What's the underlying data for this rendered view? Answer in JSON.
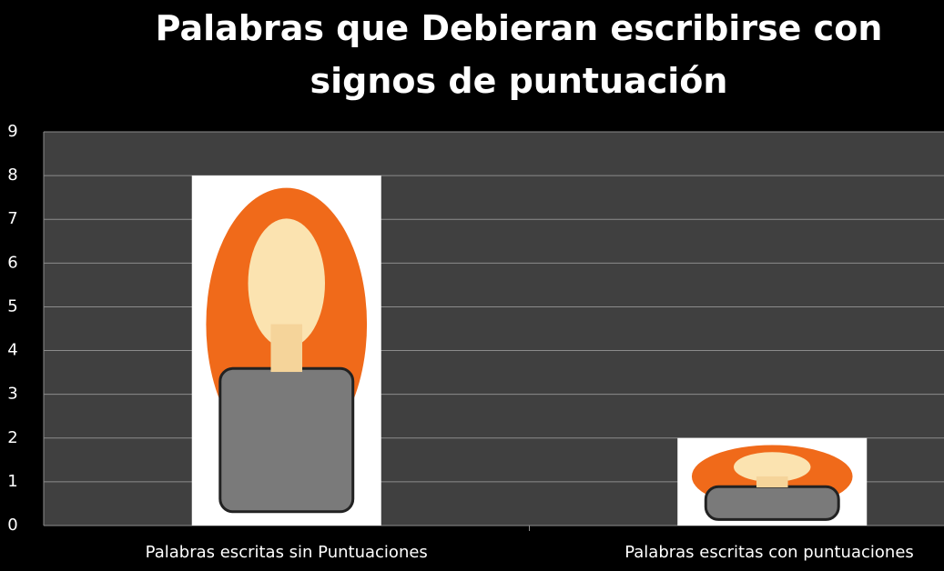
{
  "chart_data": {
    "type": "bar",
    "title": "Palabras que Debieran escribirse con signos de puntuación",
    "categories": [
      "Palabras escritas sin Puntuaciones",
      "Palabras escritas con puntuaciones"
    ],
    "values": [
      8,
      2
    ],
    "color": "#ffffff",
    "ylim": [
      0,
      9
    ],
    "yticks": [
      0,
      1,
      2,
      3,
      4,
      5,
      6,
      7,
      8,
      9
    ],
    "grid": true
  }
}
